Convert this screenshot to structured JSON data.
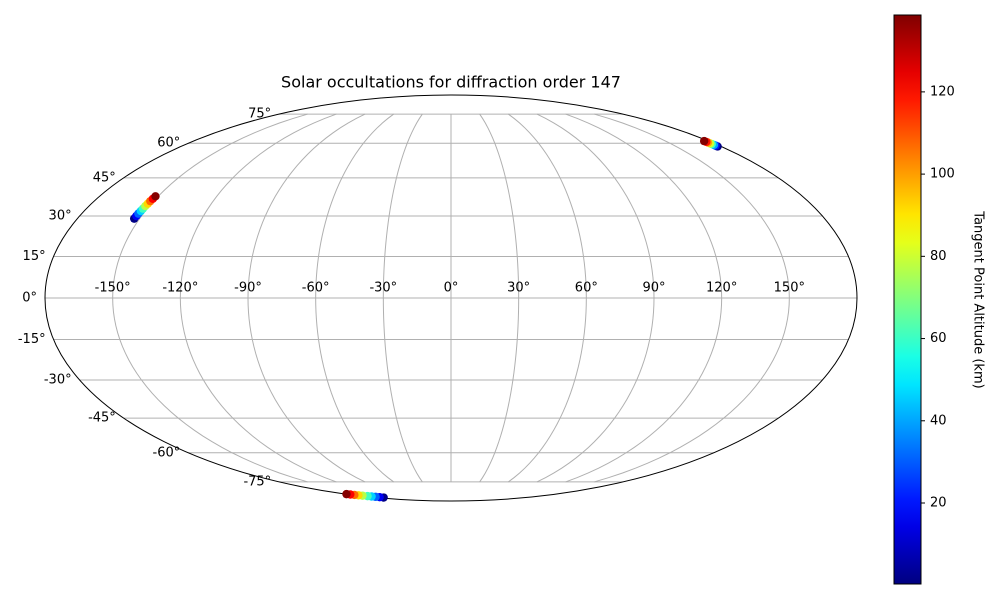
{
  "chart_data": {
    "type": "scatter",
    "projection": "mollweide",
    "title": "Solar occultations for diffraction order 147",
    "xlim": [
      -180,
      180
    ],
    "ylim": [
      -90,
      90
    ],
    "xticks": [
      {
        "value": -150,
        "label": "-150°"
      },
      {
        "value": -120,
        "label": "-120°"
      },
      {
        "value": -90,
        "label": "-90°"
      },
      {
        "value": -60,
        "label": "-60°"
      },
      {
        "value": -30,
        "label": "-30°"
      },
      {
        "value": 0,
        "label": "0°"
      },
      {
        "value": 30,
        "label": "30°"
      },
      {
        "value": 60,
        "label": "60°"
      },
      {
        "value": 90,
        "label": "90°"
      },
      {
        "value": 120,
        "label": "120°"
      },
      {
        "value": 150,
        "label": "150°"
      }
    ],
    "yticks": [
      {
        "value": -75,
        "label": "-75°"
      },
      {
        "value": -60,
        "label": "-60°"
      },
      {
        "value": -45,
        "label": "-45°"
      },
      {
        "value": -30,
        "label": "-30°"
      },
      {
        "value": -15,
        "label": "-15°"
      },
      {
        "value": 0,
        "label": "0°"
      },
      {
        "value": 15,
        "label": "15°"
      },
      {
        "value": 30,
        "label": "30°"
      },
      {
        "value": 45,
        "label": "45°"
      },
      {
        "value": 60,
        "label": "60°"
      },
      {
        "value": 75,
        "label": "75°"
      }
    ],
    "grid": true,
    "colormap": "jet",
    "clim": [
      0.3,
      138.7
    ],
    "cticks": [
      20,
      40,
      60,
      80,
      100,
      120
    ],
    "colorbar_label": "Tangent Point Altitude (km)",
    "series": [
      {
        "x": [
          -152.6,
          -152.5,
          -152.4,
          -152.2,
          -152.1,
          -152.0,
          -151.8,
          -151.7,
          -151.5,
          -151.4
        ],
        "y": [
          29.0,
          30.0,
          30.9,
          31.9,
          32.8,
          33.8,
          34.7,
          35.7,
          36.6,
          37.6
        ],
        "c": [
          1,
          16,
          31,
          46,
          61,
          77,
          92,
          107,
          122,
          138
        ]
      },
      {
        "x": [
          177.6,
          177.5,
          177.4,
          177.3,
          177.2,
          177.1,
          177.0,
          176.9
        ],
        "y": [
          58.5,
          58.9,
          59.2,
          59.6,
          59.9,
          60.3,
          60.6,
          61.0
        ],
        "c": [
          1,
          21,
          40,
          60,
          80,
          99,
          119,
          138
        ]
      },
      {
        "x": [
          -162,
          -164,
          -166,
          -168,
          -170,
          -172,
          -174,
          -176,
          -178,
          -179.5
        ],
        "y": [
          -85.8,
          -85.5,
          -85.2,
          -84.9,
          -84.6,
          -84.2,
          -83.9,
          -83.6,
          -83.3,
          -83.0
        ],
        "c": [
          1,
          16,
          31,
          46,
          61,
          77,
          92,
          107,
          122,
          138
        ]
      }
    ]
  }
}
